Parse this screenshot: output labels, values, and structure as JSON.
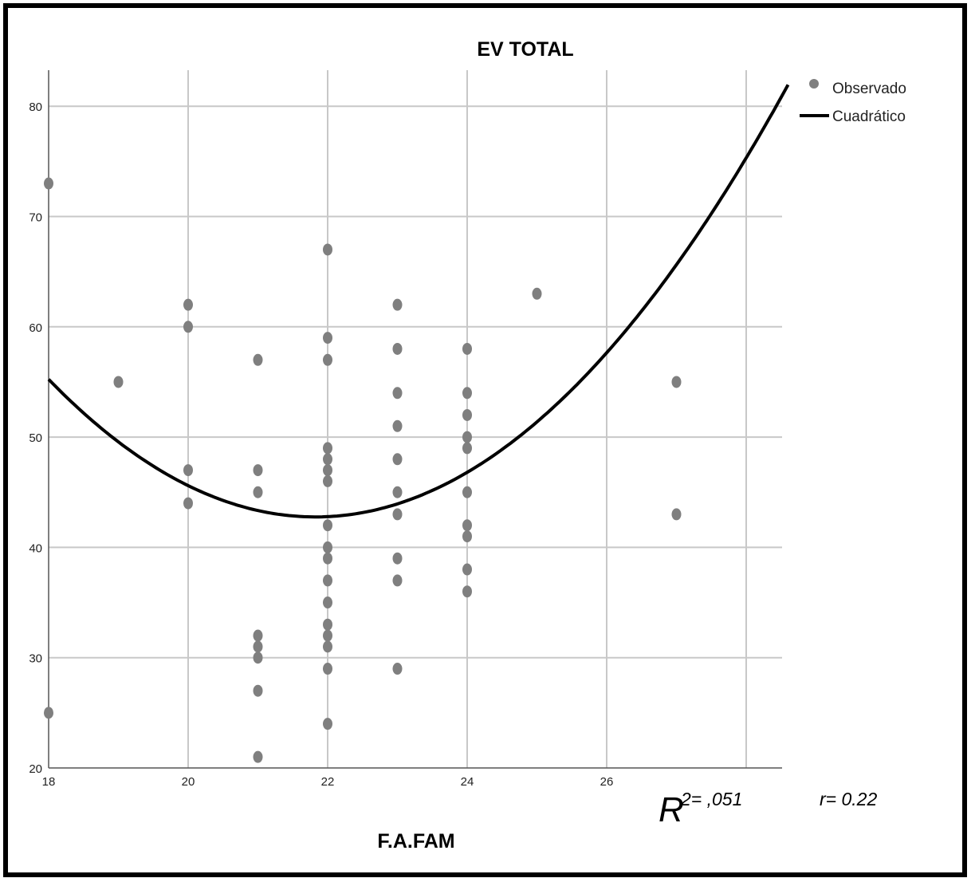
{
  "chart_data": {
    "type": "scatter",
    "title": "EV TOTAL",
    "xlabel": "F.A.FAM",
    "ylabel": "",
    "xlim": [
      18,
      28.6
    ],
    "ylim": [
      20,
      83
    ],
    "xticks": [
      18,
      20,
      22,
      24,
      26
    ],
    "xgrid": [
      18,
      20,
      22,
      24,
      26,
      28
    ],
    "yticks": [
      20,
      30,
      40,
      50,
      60,
      70,
      80
    ],
    "grid": true,
    "legend_position": "top-right",
    "legend": [
      {
        "label": "Observado",
        "kind": "marker"
      },
      {
        "label": "Cuadrático",
        "kind": "line"
      }
    ],
    "series": [
      {
        "name": "Observado",
        "color": "#7f7f7f",
        "points": [
          [
            18,
            73
          ],
          [
            18,
            25
          ],
          [
            19,
            55
          ],
          [
            20,
            62
          ],
          [
            20,
            60
          ],
          [
            20,
            47
          ],
          [
            20,
            44
          ],
          [
            21,
            57
          ],
          [
            21,
            47
          ],
          [
            21,
            45
          ],
          [
            21,
            32
          ],
          [
            21,
            31
          ],
          [
            21,
            30
          ],
          [
            21,
            27
          ],
          [
            21,
            21
          ],
          [
            22,
            67
          ],
          [
            22,
            59
          ],
          [
            22,
            57
          ],
          [
            22,
            49
          ],
          [
            22,
            48
          ],
          [
            22,
            47
          ],
          [
            22,
            46
          ],
          [
            22,
            42
          ],
          [
            22,
            40
          ],
          [
            22,
            39
          ],
          [
            22,
            37
          ],
          [
            22,
            35
          ],
          [
            22,
            33
          ],
          [
            22,
            32
          ],
          [
            22,
            31
          ],
          [
            22,
            29
          ],
          [
            22,
            24
          ],
          [
            23,
            62
          ],
          [
            23,
            58
          ],
          [
            23,
            54
          ],
          [
            23,
            51
          ],
          [
            23,
            48
          ],
          [
            23,
            45
          ],
          [
            23,
            43
          ],
          [
            23,
            39
          ],
          [
            23,
            37
          ],
          [
            23,
            29
          ],
          [
            24,
            58
          ],
          [
            24,
            54
          ],
          [
            24,
            52
          ],
          [
            24,
            50
          ],
          [
            24,
            49
          ],
          [
            24,
            45
          ],
          [
            24,
            42
          ],
          [
            24,
            41
          ],
          [
            24,
            38
          ],
          [
            24,
            36
          ],
          [
            25,
            63
          ],
          [
            27,
            55
          ],
          [
            27,
            43
          ]
        ]
      },
      {
        "name": "Cuadrático",
        "color": "#000000",
        "fit": {
          "a": 0.8533,
          "b": -37.244,
          "c": 449.16
        }
      }
    ],
    "annotations": {
      "r2_symbol": "R",
      "r2_text": "2= ,051",
      "r_text": "r= 0.22"
    }
  }
}
